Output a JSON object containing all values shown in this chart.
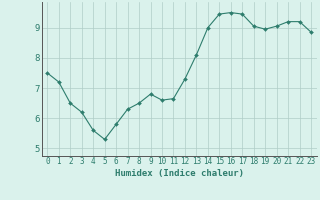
{
  "x": [
    0,
    1,
    2,
    3,
    4,
    5,
    6,
    7,
    8,
    9,
    10,
    11,
    12,
    13,
    14,
    15,
    16,
    17,
    18,
    19,
    20,
    21,
    22,
    23
  ],
  "y": [
    7.5,
    7.2,
    6.5,
    6.2,
    5.6,
    5.3,
    5.8,
    6.3,
    6.5,
    6.8,
    6.6,
    6.65,
    7.3,
    8.1,
    9.0,
    9.45,
    9.5,
    9.45,
    9.05,
    8.95,
    9.05,
    9.2,
    9.2,
    8.85
  ],
  "xlabel": "Humidex (Indice chaleur)",
  "ylim": [
    4.75,
    9.85
  ],
  "xlim": [
    -0.5,
    23.5
  ],
  "yticks": [
    5,
    6,
    7,
    8,
    9
  ],
  "xticks": [
    0,
    1,
    2,
    3,
    4,
    5,
    6,
    7,
    8,
    9,
    10,
    11,
    12,
    13,
    14,
    15,
    16,
    17,
    18,
    19,
    20,
    21,
    22,
    23
  ],
  "line_color": "#2e7d6d",
  "marker": "D",
  "marker_size": 2.0,
  "bg_color": "#daf2ec",
  "grid_color": "#b0cdc7",
  "axis_color": "#555555",
  "label_color": "#2e7d6d",
  "xlabel_fontsize": 6.5,
  "tick_fontsize": 5.5,
  "ytick_fontsize": 6.5
}
